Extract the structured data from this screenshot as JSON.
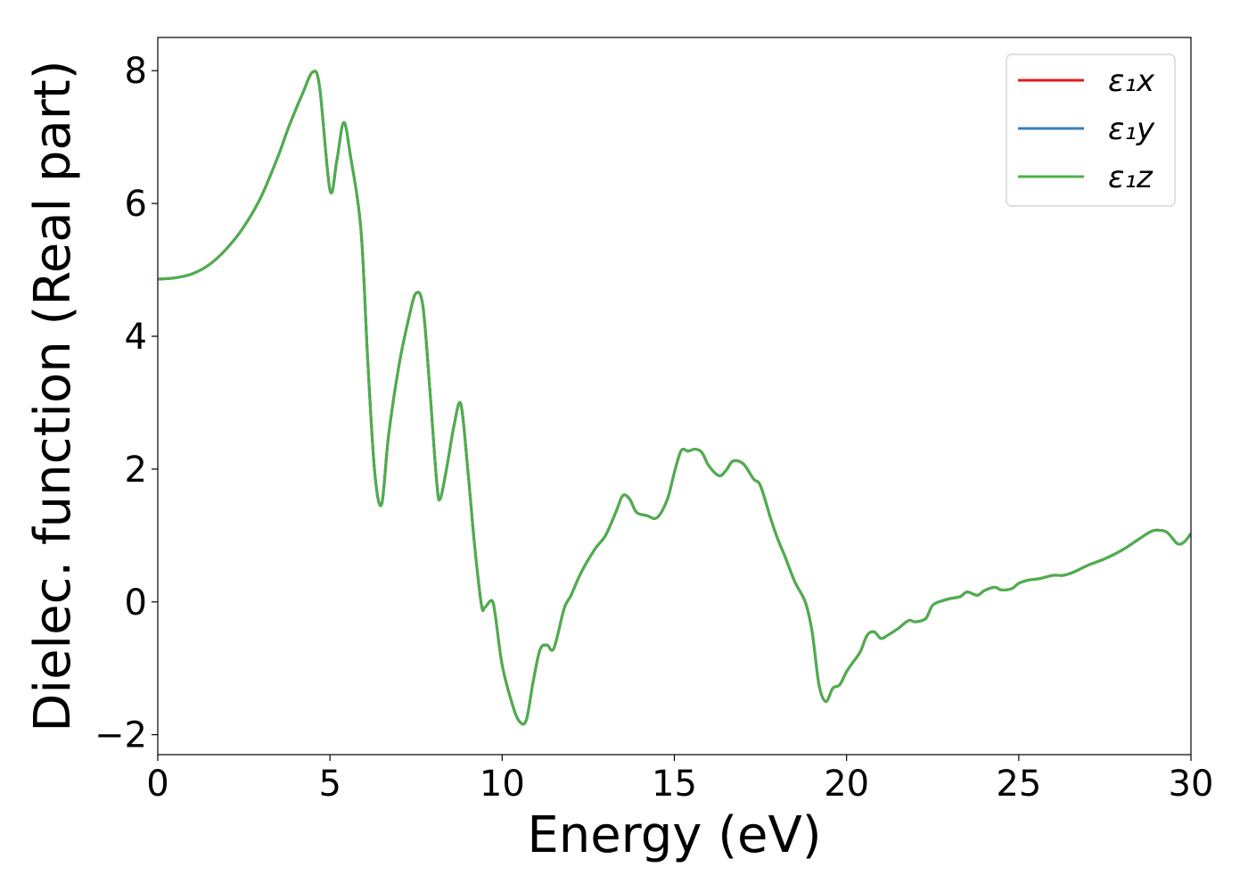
{
  "chart_data": {
    "type": "line",
    "title": "",
    "xlabel": "Energy (eV)",
    "ylabel": "Dielec. function (Real part)",
    "xlim": [
      0,
      30
    ],
    "ylim": [
      -2.3,
      8.5
    ],
    "xticks": [
      0,
      5,
      10,
      15,
      20,
      25,
      30
    ],
    "yticks": [
      -2,
      0,
      2,
      4,
      6,
      8
    ],
    "xtick_labels": [
      "0",
      "5",
      "10",
      "15",
      "20",
      "25",
      "30"
    ],
    "ytick_labels": [
      "−2",
      "0",
      "2",
      "4",
      "6",
      "8"
    ],
    "grid": false,
    "legend_position": "top-right",
    "x": [
      0,
      0.5,
      1,
      1.5,
      2,
      2.5,
      3,
      3.5,
      3.8,
      4.2,
      4.5,
      4.7,
      5.0,
      5.2,
      5.4,
      5.6,
      5.9,
      6.1,
      6.3,
      6.5,
      6.7,
      7.0,
      7.3,
      7.5,
      7.7,
      7.9,
      8.1,
      8.2,
      8.4,
      8.6,
      8.8,
      9.0,
      9.2,
      9.4,
      9.5,
      9.7,
      9.8,
      10.0,
      10.3,
      10.5,
      10.7,
      10.9,
      11.1,
      11.3,
      11.5,
      11.8,
      12.0,
      12.3,
      12.7,
      13.0,
      13.3,
      13.5,
      13.7,
      13.9,
      14.2,
      14.5,
      14.8,
      15.0,
      15.2,
      15.4,
      15.6,
      15.8,
      16.0,
      16.3,
      16.5,
      16.7,
      17.0,
      17.3,
      17.5,
      17.8,
      18.0,
      18.2,
      18.5,
      18.8,
      19.0,
      19.2,
      19.4,
      19.6,
      19.8,
      20.0,
      20.2,
      20.4,
      20.6,
      20.8,
      21.0,
      21.2,
      21.5,
      21.8,
      22.0,
      22.3,
      22.5,
      22.8,
      23.0,
      23.3,
      23.5,
      23.8,
      24.0,
      24.3,
      24.5,
      24.8,
      25.0,
      25.3,
      25.6,
      26.0,
      26.3,
      26.6,
      27.0,
      27.5,
      28.0,
      28.5,
      28.8,
      29.0,
      29.3,
      29.6,
      29.8,
      30.0
    ],
    "series": [
      {
        "name": "ε₁x",
        "color": "#e41a1c",
        "values": [
          4.86,
          4.88,
          4.94,
          5.08,
          5.32,
          5.65,
          6.1,
          6.72,
          7.15,
          7.65,
          7.98,
          7.75,
          6.2,
          6.65,
          7.22,
          6.7,
          5.6,
          3.6,
          1.95,
          1.47,
          2.5,
          3.55,
          4.3,
          4.65,
          4.45,
          3.2,
          1.8,
          1.55,
          2.05,
          2.65,
          2.98,
          2.0,
          0.85,
          -0.05,
          -0.08,
          0.02,
          -0.2,
          -0.95,
          -1.55,
          -1.8,
          -1.78,
          -1.2,
          -0.72,
          -0.65,
          -0.7,
          -0.1,
          0.1,
          0.45,
          0.8,
          1.0,
          1.35,
          1.6,
          1.55,
          1.35,
          1.3,
          1.27,
          1.55,
          1.95,
          2.28,
          2.27,
          2.3,
          2.25,
          2.05,
          1.9,
          1.98,
          2.12,
          2.08,
          1.85,
          1.75,
          1.25,
          0.95,
          0.7,
          0.3,
          0.0,
          -0.45,
          -1.25,
          -1.5,
          -1.3,
          -1.25,
          -1.05,
          -0.9,
          -0.75,
          -0.5,
          -0.45,
          -0.55,
          -0.5,
          -0.4,
          -0.28,
          -0.3,
          -0.25,
          -0.05,
          0.02,
          0.05,
          0.08,
          0.15,
          0.1,
          0.17,
          0.22,
          0.18,
          0.2,
          0.28,
          0.33,
          0.35,
          0.4,
          0.4,
          0.45,
          0.55,
          0.65,
          0.78,
          0.95,
          1.05,
          1.08,
          1.05,
          0.88,
          0.9,
          1.03
        ]
      },
      {
        "name": "ε₁y",
        "color": "#377eb8",
        "values": [
          4.86,
          4.88,
          4.94,
          5.08,
          5.32,
          5.65,
          6.1,
          6.72,
          7.15,
          7.65,
          7.98,
          7.75,
          6.2,
          6.65,
          7.22,
          6.7,
          5.6,
          3.6,
          1.95,
          1.47,
          2.5,
          3.55,
          4.3,
          4.65,
          4.45,
          3.2,
          1.8,
          1.55,
          2.05,
          2.65,
          2.98,
          2.0,
          0.85,
          -0.05,
          -0.08,
          0.02,
          -0.2,
          -0.95,
          -1.55,
          -1.8,
          -1.78,
          -1.2,
          -0.72,
          -0.65,
          -0.7,
          -0.1,
          0.1,
          0.45,
          0.8,
          1.0,
          1.35,
          1.6,
          1.55,
          1.35,
          1.3,
          1.27,
          1.55,
          1.95,
          2.28,
          2.27,
          2.3,
          2.25,
          2.05,
          1.9,
          1.98,
          2.12,
          2.08,
          1.85,
          1.75,
          1.25,
          0.95,
          0.7,
          0.3,
          0.0,
          -0.45,
          -1.25,
          -1.5,
          -1.3,
          -1.25,
          -1.05,
          -0.9,
          -0.75,
          -0.5,
          -0.45,
          -0.55,
          -0.5,
          -0.4,
          -0.28,
          -0.3,
          -0.25,
          -0.05,
          0.02,
          0.05,
          0.08,
          0.15,
          0.1,
          0.17,
          0.22,
          0.18,
          0.2,
          0.28,
          0.33,
          0.35,
          0.4,
          0.4,
          0.45,
          0.55,
          0.65,
          0.78,
          0.95,
          1.05,
          1.08,
          1.05,
          0.88,
          0.9,
          1.03
        ]
      },
      {
        "name": "ε₁z",
        "color": "#4daf4a",
        "values": [
          4.86,
          4.88,
          4.94,
          5.08,
          5.32,
          5.65,
          6.1,
          6.72,
          7.15,
          7.65,
          7.98,
          7.75,
          6.2,
          6.65,
          7.22,
          6.7,
          5.6,
          3.6,
          1.95,
          1.47,
          2.5,
          3.55,
          4.3,
          4.65,
          4.45,
          3.2,
          1.8,
          1.55,
          2.05,
          2.65,
          2.98,
          2.0,
          0.85,
          -0.05,
          -0.08,
          0.02,
          -0.2,
          -0.95,
          -1.55,
          -1.8,
          -1.78,
          -1.2,
          -0.72,
          -0.65,
          -0.7,
          -0.1,
          0.1,
          0.45,
          0.8,
          1.0,
          1.35,
          1.6,
          1.55,
          1.35,
          1.3,
          1.27,
          1.55,
          1.95,
          2.28,
          2.27,
          2.3,
          2.25,
          2.05,
          1.9,
          1.98,
          2.12,
          2.08,
          1.85,
          1.75,
          1.25,
          0.95,
          0.7,
          0.3,
          0.0,
          -0.45,
          -1.25,
          -1.5,
          -1.3,
          -1.25,
          -1.05,
          -0.9,
          -0.75,
          -0.5,
          -0.45,
          -0.55,
          -0.5,
          -0.4,
          -0.28,
          -0.3,
          -0.25,
          -0.05,
          0.02,
          0.05,
          0.08,
          0.15,
          0.1,
          0.17,
          0.22,
          0.18,
          0.2,
          0.28,
          0.33,
          0.35,
          0.4,
          0.4,
          0.45,
          0.55,
          0.65,
          0.78,
          0.95,
          1.05,
          1.08,
          1.05,
          0.88,
          0.9,
          1.03
        ]
      }
    ]
  }
}
